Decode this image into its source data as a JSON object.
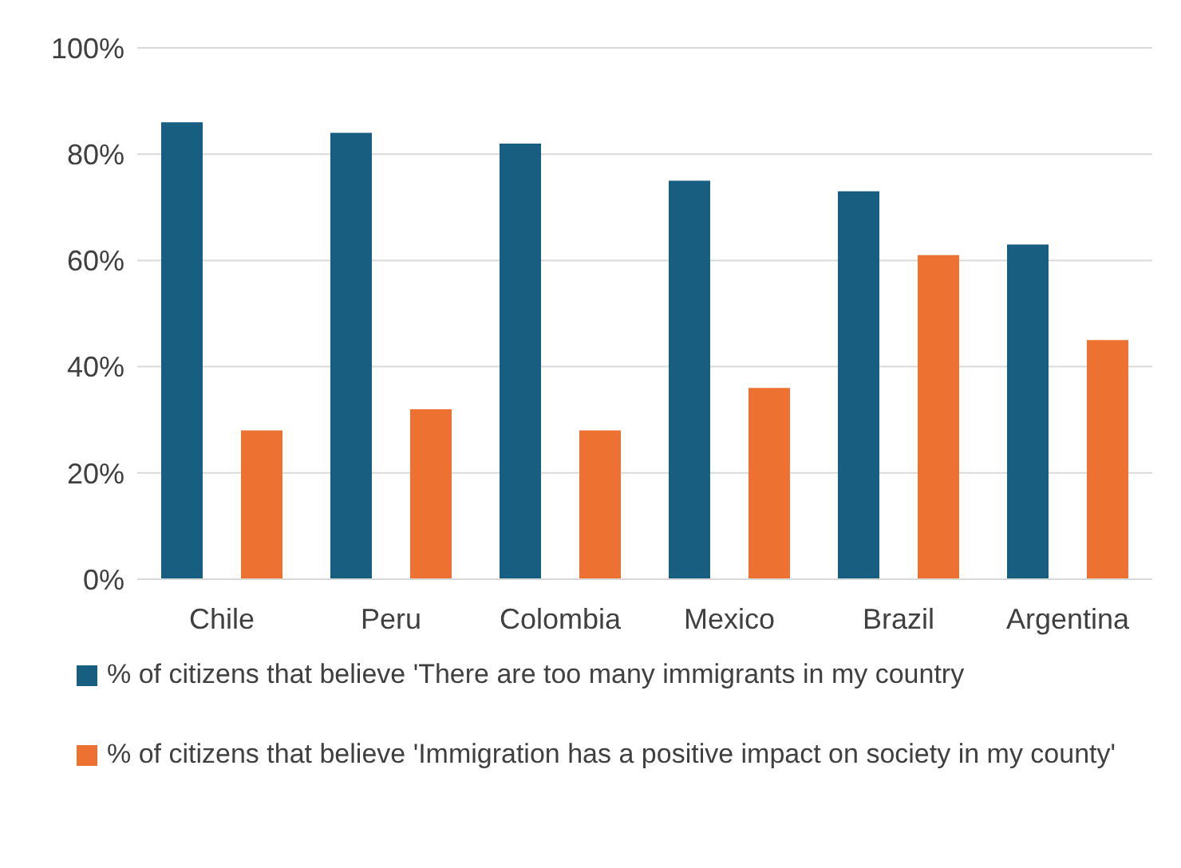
{
  "chart_data": {
    "type": "bar",
    "categories": [
      "Chile",
      "Peru",
      "Colombia",
      "Mexico",
      "Brazil",
      "Argentina"
    ],
    "series": [
      {
        "name": "% of citizens that believe 'There are too many immigrants in my country",
        "color": "#175e80",
        "values": [
          86,
          84,
          82,
          75,
          73,
          63
        ]
      },
      {
        "name": "% of citizens that believe 'Immigration has a positive impact on society in my county'",
        "color": "#ed7232",
        "values": [
          28,
          32,
          28,
          36,
          61,
          45
        ]
      }
    ],
    "ylim": [
      0,
      100
    ],
    "yticks": [
      {
        "value": 0,
        "label": "0%"
      },
      {
        "value": 20,
        "label": "20%"
      },
      {
        "value": 40,
        "label": "40%"
      },
      {
        "value": 60,
        "label": "60%"
      },
      {
        "value": 80,
        "label": "80%"
      },
      {
        "value": 100,
        "label": "100%"
      }
    ],
    "grid": "y",
    "legend": "bottom"
  }
}
